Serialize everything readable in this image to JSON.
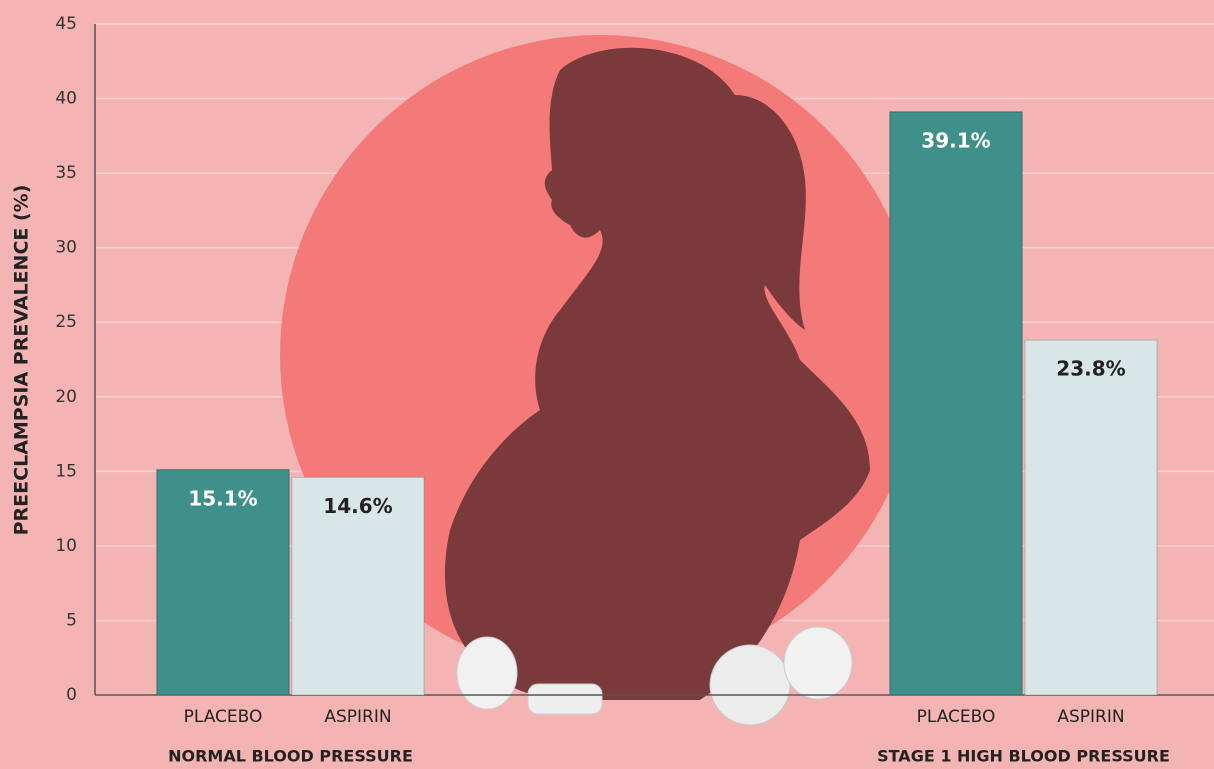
{
  "chart_data": {
    "type": "bar",
    "y_label": "PREECLAMPSIA PREVALENCE (%)",
    "categories": [
      "NORMAL BLOOD PRESSURE",
      "STAGE 1 HIGH BLOOD PRESSURE"
    ],
    "series": [
      {
        "name": "PLACEBO",
        "color": "#3f8f8a",
        "values": [
          15.1,
          39.1
        ],
        "value_labels": [
          "15.1%",
          "39.1%"
        ],
        "label_color": "#ffffff"
      },
      {
        "name": "ASPIRIN",
        "color": "#d9e6e6",
        "values": [
          14.6,
          23.8
        ],
        "value_labels": [
          "14.6%",
          "23.8%"
        ],
        "label_color": "#222222"
      }
    ],
    "ylim": [
      0,
      45
    ],
    "yticks": [
      0,
      5,
      10,
      15,
      20,
      25,
      30,
      35,
      40,
      45
    ],
    "grid": true
  }
}
